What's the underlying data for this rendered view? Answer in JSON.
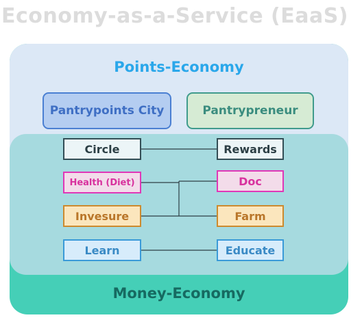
{
  "diagram": {
    "title": "Economy-as-a-Service (EaaS)",
    "points_economy": {
      "label": "Points-Economy",
      "platforms": [
        "Pantrypoints City",
        "Pantrypreneur"
      ]
    },
    "money_economy": {
      "label": "Money-Economy"
    },
    "pairs": [
      {
        "left": "Circle",
        "right": "Rewards"
      },
      {
        "left": "Health (Diet)",
        "right": "Doc"
      },
      {
        "left": "Invesure",
        "right": "Farm"
      },
      {
        "left": "Learn",
        "right": "Educate"
      }
    ],
    "colors": {
      "points_panel": "#dce8f6",
      "inner_panel": "#a6dadf",
      "money_panel": "#45cfb7",
      "health_doc": "#e037b7",
      "invesure_farm": "#cd8a2d",
      "learn_educate": "#3a9ad8"
    }
  }
}
